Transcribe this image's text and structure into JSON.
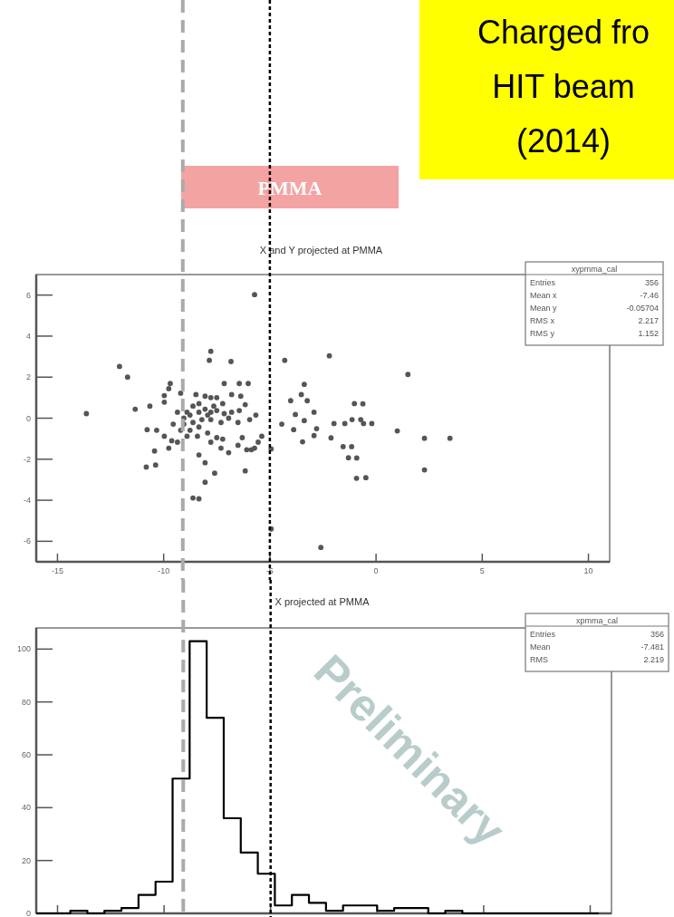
{
  "chart_data": [
    {
      "type": "scatter",
      "title": "X and Y projected at PMMA",
      "x": [
        -12.08,
        -11.7,
        -13.64,
        -11.34,
        -10.65,
        -9.97,
        -9.69,
        -10.82,
        -10.38,
        -10.43,
        -10.78,
        -8.62,
        -8.34,
        -8.05,
        -7.6,
        -8.05,
        -8.34,
        -7.78,
        -7.85,
        -6.83,
        -7.15,
        -6.44,
        -6.02,
        -5.72,
        -4.3,
        -2.2,
        -3.38,
        -3.52,
        -3.24,
        -4.02,
        -2.92,
        -3.8,
        -4.44,
        -3.38,
        -3.88,
        -2.8,
        -2.92,
        -3.46,
        -2.12,
        -1.98,
        -1.13,
        -1.02,
        -0.59,
        -1.55,
        -1.3,
        -0.92,
        -4.94,
        -4.94,
        -2.6,
        -6.16,
        -5.55,
        -5.38,
        -5.72,
        -6.09,
        -6.3,
        -6.94,
        -7.3,
        -7.5,
        -7.93,
        -8.34,
        -8.62,
        -8.9,
        -9.2,
        -9.55,
        -9.35,
        -8.9,
        -8.62,
        -8.34,
        -8.05,
        -7.78,
        -7.5,
        -7.15,
        -6.8,
        -6.44,
        -8.48,
        -8.05,
        -7.5,
        -6.8,
        -6.37,
        -6.16,
        -5.66,
        -5.95,
        -6.5,
        -6.94,
        -7.3,
        -7.78,
        -8.2,
        -9.05,
        -9.05,
        -8.76,
        -8.41,
        -7.78,
        -7.22,
        -6.5,
        -5.87,
        -9.76,
        -9.97,
        -9.2,
        -7.78,
        -7.22,
        -7.93,
        -7.64,
        -8.34,
        -8.76,
        -9.35,
        -9.76,
        -9.62,
        -9.97,
        -10.33,
        1.5,
        -0.62,
        -0.72,
        -0.2,
        1.0,
        2.28,
        3.48,
        -1.15,
        -0.91,
        -0.48,
        2.28,
        -1.47
      ],
      "values": [
        2.52,
        2.0,
        0.22,
        0.44,
        0.59,
        1.1,
        1.69,
        -2.38,
        -2.28,
        -1.6,
        -0.56,
        -3.89,
        -3.93,
        -3.12,
        -2.68,
        -2.17,
        -1.79,
        3.26,
        2.82,
        2.76,
        1.69,
        1.69,
        1.69,
        6.02,
        2.82,
        3.04,
        1.65,
        1.15,
        0.85,
        0.85,
        0.29,
        0.18,
        -0.29,
        -0.12,
        -0.56,
        -0.51,
        -0.85,
        -1.15,
        -0.96,
        -0.26,
        -0.07,
        0.71,
        -0.26,
        -1.39,
        -1.93,
        -2.93,
        -1.5,
        -5.4,
        -6.3,
        -2.57,
        -1.17,
        -0.88,
        -1.46,
        -1.54,
        -0.95,
        -1.68,
        -1.46,
        -0.95,
        -0.72,
        -0.43,
        -0.21,
        -0.88,
        -0.59,
        -0.29,
        0.29,
        0.29,
        0.59,
        0.29,
        0.44,
        0.29,
        0.37,
        0.22,
        0.29,
        0.37,
        1.15,
        1.07,
        1.0,
        1.15,
        1.07,
        0.66,
        0.15,
        -0.07,
        -0.21,
        0.0,
        -0.21,
        -0.07,
        -0.07,
        0.0,
        -0.29,
        -0.59,
        -0.88,
        -1.17,
        -1.02,
        -1.32,
        -1.54,
        1.44,
        0.78,
        1.22,
        1.0,
        0.71,
        0.15,
        0.59,
        0.71,
        0.15,
        -1.17,
        -1.46,
        -1.1,
        -0.88,
        -0.59,
        2.13,
        0.7,
        -0.07,
        -0.26,
        -0.62,
        -0.98,
        -0.98,
        -1.39,
        -1.94,
        -2.9,
        -2.52,
        -0.26
      ],
      "color": "#555555",
      "marker": "circle",
      "xlim": [
        -16,
        11
      ],
      "xticks": [
        -15,
        -10,
        -5,
        0,
        5,
        10
      ],
      "ylim": [
        -7,
        7
      ],
      "yticks": [
        -6,
        -4,
        -2,
        0,
        2,
        4,
        6
      ],
      "ref_lines": [
        {
          "axis": "x",
          "value": -9.1,
          "color": "#aaaaaa",
          "line_style": "dashed"
        },
        {
          "axis": "x",
          "value": -5,
          "color": "#000000",
          "line_style": "dotted"
        }
      ],
      "annotations": [
        "Charged fro\nHIT beam\n(2014)",
        "Preliminary",
        "PMMA",
        "xypmma_cal",
        "Entries 356",
        "Mean x -7.46",
        "Mean y -0.05704",
        "RMS x 2.217",
        "RMS y 1.152"
      ]
    },
    {
      "type": "histogram",
      "title": "X projected at PMMA",
      "bins": [
        -16,
        -15.2,
        -14.4,
        -13.6,
        -12.8,
        -12,
        -11.2,
        -10.4,
        -9.6,
        -8.8,
        -8,
        -7.2,
        -6.4,
        -5.6,
        -4.8,
        -4,
        -3.2,
        -2.4,
        -1.6,
        -0.8,
        0,
        0.8,
        1.6,
        2.4,
        3.2,
        4,
        4.8,
        5.6,
        6.4,
        7.2,
        8,
        8.8,
        9.6,
        10.4
      ],
      "values": [
        0,
        0,
        1,
        0,
        1,
        2,
        7,
        12,
        51,
        103,
        74,
        36,
        23,
        15,
        3,
        7,
        4,
        1,
        3,
        3,
        1,
        2,
        2,
        0,
        1,
        0,
        0,
        0,
        0,
        0,
        0,
        0,
        0
      ],
      "color": "#000000",
      "xlim": [
        -16,
        11
      ],
      "xticks": [
        {
          "value": -15,
          "label": null
        },
        {
          "value": -10,
          "label": null
        },
        {
          "value": -5,
          "label": null
        },
        {
          "value": 0,
          "label": null
        },
        {
          "value": 5,
          "label": null
        },
        {
          "value": 10,
          "label": null
        }
      ],
      "ylim": [
        0,
        108
      ],
      "yticks": [
        0,
        20,
        40,
        60,
        80,
        100
      ],
      "tick_labels": "y",
      "ref_lines": [
        {
          "axis": "x",
          "value": -9.1,
          "color": "#aaaaaa",
          "line_style": "dashed"
        },
        {
          "axis": "x",
          "value": -5,
          "color": "#000000",
          "line_style": "dotted"
        }
      ],
      "annotations": [
        "xpmma_cal",
        "Entries 356",
        "Mean -7.481",
        "RMS 2.219"
      ]
    }
  ]
}
